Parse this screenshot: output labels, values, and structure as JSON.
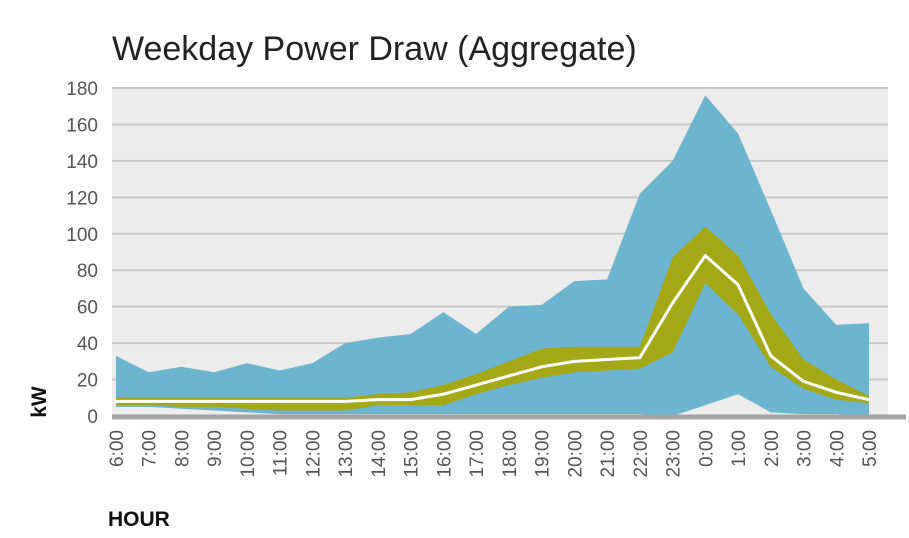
{
  "chart_data": {
    "type": "area",
    "title": "Weekday Power Draw (Aggregate)",
    "xlabel": "HOUR",
    "ylabel": "kW",
    "ylim": [
      0,
      180
    ],
    "yticks": [
      0,
      20,
      40,
      60,
      80,
      100,
      120,
      140,
      160,
      180
    ],
    "grid": true,
    "categories": [
      "6:00",
      "7:00",
      "8:00",
      "9:00",
      "10:00",
      "11:00",
      "12:00",
      "13:00",
      "14:00",
      "15:00",
      "16:00",
      "17:00",
      "18:00",
      "19:00",
      "20:00",
      "21:00",
      "22:00",
      "23:00",
      "0:00",
      "1:00",
      "2:00",
      "3:00",
      "4:00",
      "5:00"
    ],
    "bands": [
      {
        "role": "outer-range",
        "color": "#6cb4cf",
        "upper": [
          33,
          24,
          27,
          24,
          29,
          25,
          29,
          40,
          43,
          45,
          57,
          45,
          60,
          61,
          74,
          75,
          122,
          140,
          176,
          155,
          113,
          70,
          50,
          51
        ],
        "lower": [
          5,
          5,
          4,
          3,
          2,
          1,
          1,
          1,
          1,
          1,
          1,
          1,
          1,
          1,
          1,
          1,
          1,
          0,
          6,
          12,
          2,
          1,
          1,
          0
        ]
      },
      {
        "role": "inner-range",
        "color": "#a3a814",
        "upper": [
          10,
          10,
          10,
          10,
          10,
          10,
          10,
          10,
          12,
          13,
          17,
          23,
          30,
          37,
          38,
          38,
          38,
          87,
          104,
          88,
          56,
          31,
          20,
          11
        ],
        "lower": [
          6,
          6,
          5,
          5,
          4,
          3,
          3,
          3,
          6,
          6,
          6,
          12,
          17,
          21,
          24,
          25,
          26,
          35,
          73,
          56,
          27,
          15,
          9,
          7
        ]
      }
    ],
    "series": [
      {
        "color": "#ffffff",
        "values": [
          8,
          8,
          8,
          8,
          8,
          8,
          8,
          8,
          9,
          9,
          12,
          17,
          22,
          27,
          30,
          31,
          32,
          62,
          88,
          72,
          33,
          19,
          13,
          9
        ]
      }
    ],
    "colors": {
      "plot_bg": "#ececec",
      "grid": "#c9c9c9",
      "baseline": "#a3a3a3"
    }
  }
}
